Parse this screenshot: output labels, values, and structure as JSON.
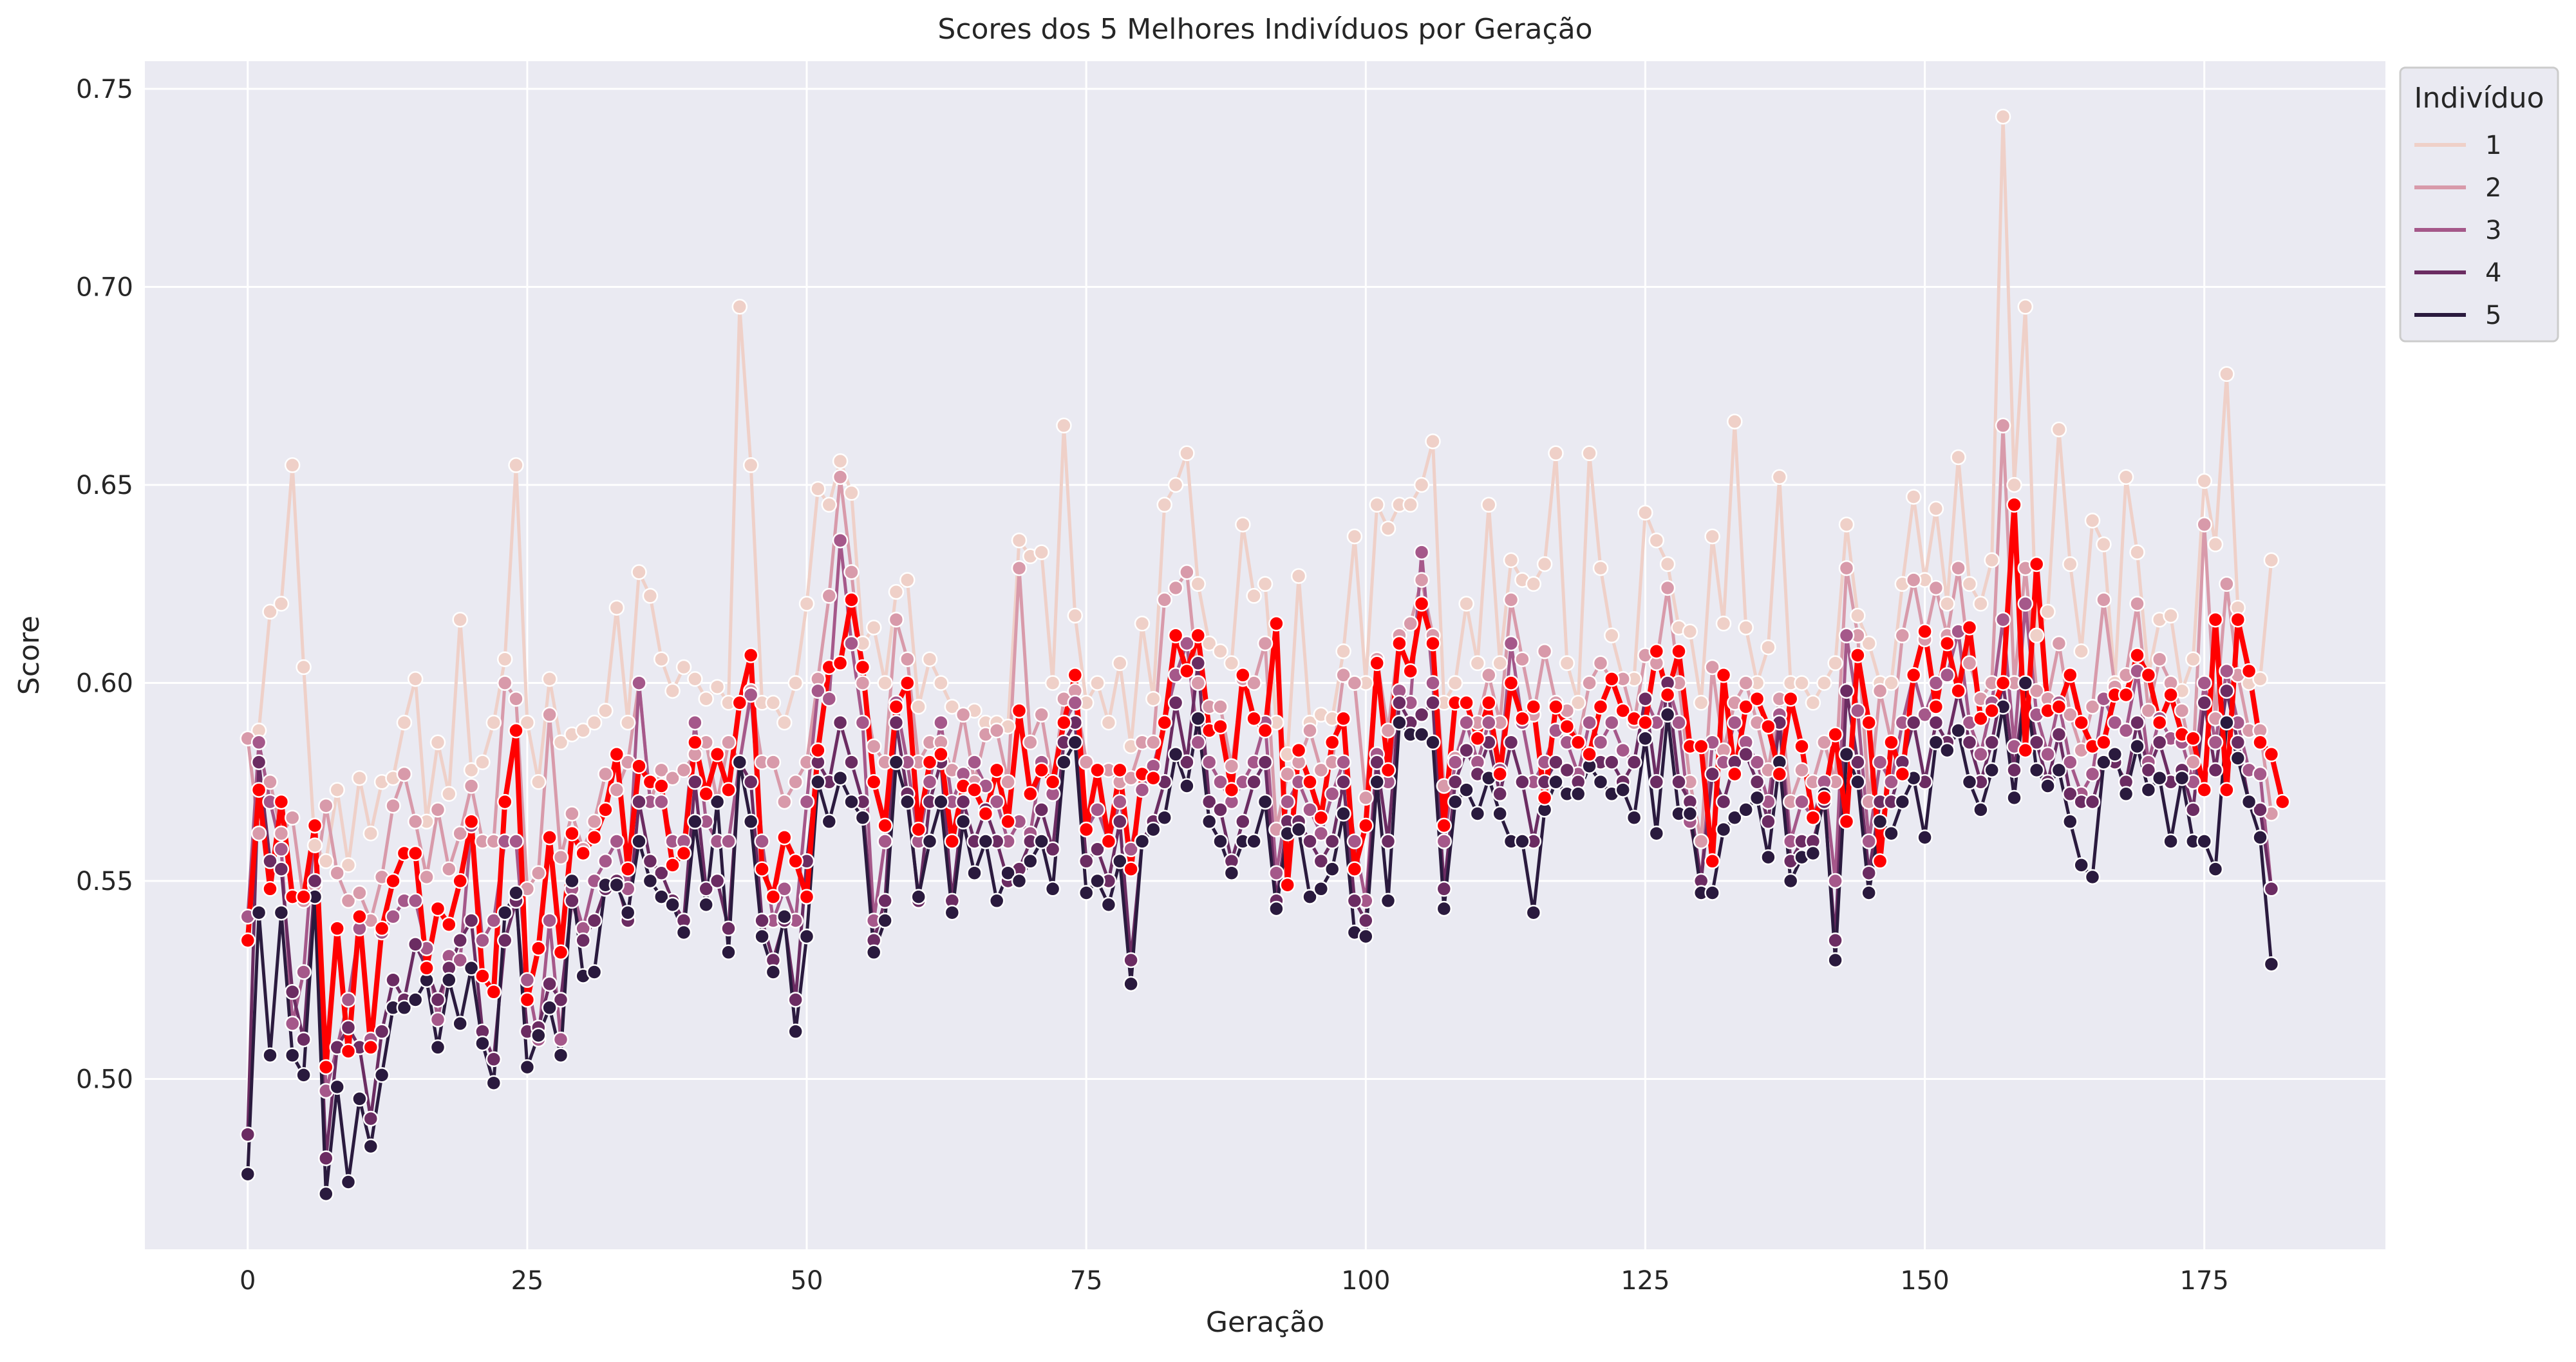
{
  "chart_data": {
    "type": "line",
    "title": "Scores dos 5 Melhores Indivíduos por Geração",
    "xlabel": "Geração",
    "ylabel": "Score",
    "xlim": [
      -9.2,
      191.2
    ],
    "ylim": [
      0.457,
      0.757
    ],
    "xticks": [
      0,
      25,
      50,
      75,
      100,
      125,
      150,
      175
    ],
    "yticks": [
      0.5,
      0.55,
      0.6,
      0.65,
      0.7,
      0.75
    ],
    "ytick_labels": [
      "0.50",
      "0.55",
      "0.60",
      "0.65",
      "0.70",
      "0.75"
    ],
    "grid": true,
    "legend": {
      "title": "Indivíduo",
      "position": "top-right, outside plot"
    },
    "generations": {
      "start": 0,
      "end": 182,
      "step": 1
    },
    "series": [
      {
        "name": "1",
        "color": "#efd0c8",
        "values": [
          0.586,
          0.588,
          0.618,
          0.62,
          0.655,
          0.604,
          0.559,
          0.555,
          0.573,
          0.554,
          0.576,
          0.562,
          0.575,
          0.576,
          0.59,
          0.601,
          0.565,
          0.585,
          0.572,
          0.616,
          0.578,
          0.58,
          0.59,
          0.606,
          0.655,
          0.59,
          0.575,
          0.601,
          0.585,
          0.587,
          0.588,
          0.59,
          0.593,
          0.619,
          0.59,
          0.628,
          0.622,
          0.606,
          0.598,
          0.604,
          0.601,
          0.596,
          0.599,
          0.595,
          0.695,
          0.655,
          0.595,
          0.595,
          0.59,
          0.6,
          0.62,
          0.649,
          0.645,
          0.656,
          0.648,
          0.61,
          0.614,
          0.6,
          0.623,
          0.626,
          0.594,
          0.606,
          0.6,
          0.594,
          0.592,
          0.593,
          0.59,
          0.59,
          0.589,
          0.636,
          0.632,
          0.633,
          0.6,
          0.665,
          0.617,
          0.595,
          0.6,
          0.59,
          0.605,
          0.584,
          0.615,
          0.596,
          0.645,
          0.65,
          0.658,
          0.625,
          0.61,
          0.608,
          0.605,
          0.64,
          0.622,
          0.625,
          0.59,
          0.582,
          0.627,
          0.59,
          0.592,
          0.591,
          0.608,
          0.637,
          0.6,
          0.645,
          0.639,
          0.645,
          0.645,
          0.65,
          0.661,
          0.595,
          0.6,
          0.62,
          0.605,
          0.645,
          0.605,
          0.631,
          0.626,
          0.625,
          0.63,
          0.658,
          0.605,
          0.595,
          0.658,
          0.629,
          0.612,
          0.601,
          0.601,
          0.643,
          0.636,
          0.63,
          0.614,
          0.613,
          0.595,
          0.637,
          0.615,
          0.666,
          0.614,
          0.6,
          0.609,
          0.652,
          0.6,
          0.6,
          0.595,
          0.6,
          0.605,
          0.64,
          0.617,
          0.61,
          0.6,
          0.6,
          0.625,
          0.647,
          0.626,
          0.644,
          0.62,
          0.657,
          0.625,
          0.62,
          0.631,
          0.743,
          0.65,
          0.695,
          0.612,
          0.618,
          0.664,
          0.63,
          0.608,
          0.641,
          0.635,
          0.6,
          0.652,
          0.633,
          0.602,
          0.616,
          0.617,
          0.598,
          0.606,
          0.651,
          0.635,
          0.678,
          0.619,
          0.6,
          0.601,
          0.631
        ]
      },
      {
        "name": "2",
        "color": "#d89aaa",
        "values": [
          0.586,
          0.562,
          0.575,
          0.562,
          0.566,
          0.545,
          0.549,
          0.569,
          0.552,
          0.545,
          0.547,
          0.54,
          0.551,
          0.569,
          0.577,
          0.565,
          0.551,
          0.568,
          0.553,
          0.562,
          0.574,
          0.56,
          0.56,
          0.6,
          0.596,
          0.548,
          0.552,
          0.592,
          0.556,
          0.567,
          0.558,
          0.565,
          0.577,
          0.573,
          0.58,
          0.6,
          0.57,
          0.578,
          0.576,
          0.578,
          0.582,
          0.585,
          0.57,
          0.585,
          0.58,
          0.598,
          0.58,
          0.58,
          0.57,
          0.575,
          0.58,
          0.601,
          0.622,
          0.652,
          0.628,
          0.6,
          0.584,
          0.58,
          0.616,
          0.606,
          0.58,
          0.585,
          0.585,
          0.578,
          0.592,
          0.575,
          0.587,
          0.588,
          0.575,
          0.629,
          0.585,
          0.592,
          0.575,
          0.596,
          0.598,
          0.58,
          0.578,
          0.578,
          0.575,
          0.576,
          0.585,
          0.585,
          0.621,
          0.624,
          0.628,
          0.6,
          0.594,
          0.594,
          0.579,
          0.601,
          0.6,
          0.61,
          0.563,
          0.577,
          0.58,
          0.588,
          0.578,
          0.58,
          0.602,
          0.6,
          0.571,
          0.606,
          0.588,
          0.612,
          0.615,
          0.626,
          0.612,
          0.574,
          0.581,
          0.59,
          0.59,
          0.602,
          0.59,
          0.621,
          0.606,
          0.592,
          0.608,
          0.595,
          0.593,
          0.585,
          0.6,
          0.605,
          0.601,
          0.601,
          0.59,
          0.607,
          0.605,
          0.624,
          0.6,
          0.575,
          0.56,
          0.604,
          0.583,
          0.595,
          0.6,
          0.59,
          0.578,
          0.596,
          0.57,
          0.578,
          0.575,
          0.585,
          0.575,
          0.629,
          0.612,
          0.57,
          0.598,
          0.585,
          0.612,
          0.626,
          0.611,
          0.624,
          0.612,
          0.629,
          0.605,
          0.596,
          0.6,
          0.665,
          0.6,
          0.629,
          0.598,
          0.596,
          0.61,
          0.592,
          0.583,
          0.594,
          0.621,
          0.599,
          0.602,
          0.62,
          0.593,
          0.606,
          0.6,
          0.593,
          0.58,
          0.64,
          0.591,
          0.625,
          0.602,
          0.588,
          0.588,
          0.567
        ]
      },
      {
        "name": "3",
        "color": "#a5588a",
        "values": [
          0.541,
          0.585,
          0.57,
          0.558,
          0.514,
          0.527,
          0.564,
          0.497,
          0.508,
          0.52,
          0.538,
          0.51,
          0.537,
          0.541,
          0.545,
          0.545,
          0.533,
          0.515,
          0.531,
          0.53,
          0.564,
          0.535,
          0.54,
          0.56,
          0.56,
          0.525,
          0.51,
          0.54,
          0.51,
          0.548,
          0.538,
          0.55,
          0.555,
          0.56,
          0.548,
          0.6,
          0.57,
          0.57,
          0.56,
          0.56,
          0.59,
          0.565,
          0.56,
          0.56,
          0.58,
          0.597,
          0.56,
          0.54,
          0.548,
          0.54,
          0.57,
          0.598,
          0.596,
          0.636,
          0.61,
          0.59,
          0.54,
          0.56,
          0.595,
          0.58,
          0.56,
          0.575,
          0.59,
          0.57,
          0.577,
          0.58,
          0.574,
          0.57,
          0.56,
          0.565,
          0.562,
          0.58,
          0.572,
          0.59,
          0.595,
          0.563,
          0.568,
          0.56,
          0.57,
          0.558,
          0.573,
          0.579,
          0.59,
          0.602,
          0.61,
          0.585,
          0.58,
          0.575,
          0.57,
          0.575,
          0.58,
          0.59,
          0.552,
          0.57,
          0.575,
          0.568,
          0.562,
          0.572,
          0.58,
          0.56,
          0.545,
          0.582,
          0.575,
          0.598,
          0.595,
          0.633,
          0.6,
          0.56,
          0.58,
          0.59,
          0.58,
          0.59,
          0.578,
          0.61,
          0.59,
          0.575,
          0.58,
          0.588,
          0.585,
          0.577,
          0.59,
          0.585,
          0.59,
          0.583,
          0.58,
          0.596,
          0.59,
          0.6,
          0.59,
          0.565,
          0.55,
          0.585,
          0.58,
          0.59,
          0.585,
          0.58,
          0.57,
          0.592,
          0.56,
          0.57,
          0.566,
          0.575,
          0.55,
          0.612,
          0.593,
          0.56,
          0.58,
          0.575,
          0.59,
          0.602,
          0.592,
          0.6,
          0.602,
          0.613,
          0.59,
          0.582,
          0.595,
          0.616,
          0.584,
          0.62,
          0.592,
          0.582,
          0.595,
          0.58,
          0.572,
          0.577,
          0.596,
          0.59,
          0.588,
          0.603,
          0.58,
          0.591,
          0.586,
          0.585,
          0.575,
          0.6,
          0.585,
          0.603,
          0.59,
          0.578,
          0.577,
          0.548
        ]
      },
      {
        "name": "4",
        "color": "#6b2c62",
        "values": [
          0.486,
          0.58,
          0.555,
          0.553,
          0.522,
          0.51,
          0.55,
          0.48,
          0.508,
          0.513,
          0.508,
          0.49,
          0.512,
          0.525,
          0.52,
          0.534,
          0.528,
          0.52,
          0.528,
          0.535,
          0.54,
          0.512,
          0.505,
          0.535,
          0.545,
          0.512,
          0.513,
          0.524,
          0.52,
          0.545,
          0.535,
          0.54,
          0.548,
          0.55,
          0.54,
          0.57,
          0.555,
          0.552,
          0.545,
          0.54,
          0.575,
          0.548,
          0.55,
          0.538,
          0.58,
          0.575,
          0.54,
          0.53,
          0.54,
          0.52,
          0.555,
          0.58,
          0.575,
          0.59,
          0.58,
          0.57,
          0.535,
          0.545,
          0.59,
          0.572,
          0.545,
          0.57,
          0.58,
          0.545,
          0.57,
          0.56,
          0.568,
          0.56,
          0.55,
          0.553,
          0.56,
          0.568,
          0.558,
          0.585,
          0.59,
          0.555,
          0.558,
          0.55,
          0.565,
          0.53,
          0.56,
          0.565,
          0.575,
          0.595,
          0.58,
          0.605,
          0.57,
          0.568,
          0.555,
          0.565,
          0.575,
          0.58,
          0.545,
          0.565,
          0.565,
          0.56,
          0.555,
          0.56,
          0.575,
          0.545,
          0.54,
          0.58,
          0.56,
          0.595,
          0.59,
          0.592,
          0.595,
          0.548,
          0.575,
          0.583,
          0.577,
          0.585,
          0.572,
          0.585,
          0.575,
          0.56,
          0.575,
          0.58,
          0.578,
          0.575,
          0.582,
          0.58,
          0.58,
          0.575,
          0.58,
          0.596,
          0.575,
          0.6,
          0.575,
          0.57,
          0.55,
          0.577,
          0.57,
          0.58,
          0.582,
          0.575,
          0.565,
          0.59,
          0.555,
          0.56,
          0.56,
          0.57,
          0.535,
          0.598,
          0.58,
          0.552,
          0.57,
          0.57,
          0.58,
          0.59,
          0.575,
          0.59,
          0.585,
          0.598,
          0.585,
          0.575,
          0.585,
          0.6,
          0.578,
          0.6,
          0.585,
          0.575,
          0.587,
          0.572,
          0.57,
          0.57,
          0.58,
          0.58,
          0.575,
          0.59,
          0.578,
          0.585,
          0.575,
          0.578,
          0.568,
          0.595,
          0.578,
          0.598,
          0.585,
          0.57,
          0.568,
          0.548
        ]
      },
      {
        "name": "5",
        "color": "#2a1a3e",
        "values": [
          0.476,
          0.542,
          0.506,
          0.542,
          0.506,
          0.501,
          0.546,
          0.471,
          0.498,
          0.474,
          0.495,
          0.483,
          0.501,
          0.518,
          0.518,
          0.52,
          0.525,
          0.508,
          0.525,
          0.514,
          0.528,
          0.509,
          0.499,
          0.542,
          0.547,
          0.503,
          0.511,
          0.518,
          0.506,
          0.55,
          0.526,
          0.527,
          0.549,
          0.549,
          0.542,
          0.56,
          0.55,
          0.546,
          0.544,
          0.537,
          0.565,
          0.544,
          0.57,
          0.532,
          0.58,
          0.565,
          0.536,
          0.527,
          0.541,
          0.512,
          0.536,
          0.575,
          0.565,
          0.576,
          0.57,
          0.566,
          0.532,
          0.54,
          0.58,
          0.57,
          0.546,
          0.56,
          0.57,
          0.542,
          0.565,
          0.552,
          0.56,
          0.545,
          0.552,
          0.55,
          0.555,
          0.56,
          0.548,
          0.58,
          0.585,
          0.547,
          0.55,
          0.544,
          0.555,
          0.524,
          0.56,
          0.563,
          0.566,
          0.582,
          0.574,
          0.591,
          0.565,
          0.56,
          0.552,
          0.56,
          0.56,
          0.57,
          0.543,
          0.562,
          0.563,
          0.546,
          0.548,
          0.553,
          0.567,
          0.537,
          0.536,
          0.575,
          0.545,
          0.59,
          0.587,
          0.587,
          0.585,
          0.543,
          0.57,
          0.573,
          0.567,
          0.576,
          0.567,
          0.56,
          0.56,
          0.542,
          0.568,
          0.575,
          0.572,
          0.572,
          0.579,
          0.575,
          0.572,
          0.573,
          0.566,
          0.586,
          0.562,
          0.592,
          0.567,
          0.567,
          0.547,
          0.547,
          0.563,
          0.566,
          0.568,
          0.571,
          0.556,
          0.58,
          0.55,
          0.556,
          0.557,
          0.572,
          0.53,
          0.582,
          0.575,
          0.547,
          0.565,
          0.562,
          0.57,
          0.576,
          0.561,
          0.585,
          0.583,
          0.588,
          0.575,
          0.568,
          0.578,
          0.594,
          0.571,
          0.6,
          0.578,
          0.574,
          0.578,
          0.565,
          0.554,
          0.551,
          0.58,
          0.582,
          0.572,
          0.584,
          0.573,
          0.576,
          0.56,
          0.576,
          0.56,
          0.56,
          0.553,
          0.59,
          0.581,
          0.57,
          0.561,
          0.529
        ]
      }
    ],
    "highlight_series": {
      "color": "#ff0000",
      "values": [
        0.535,
        0.573,
        0.548,
        0.57,
        0.546,
        0.546,
        0.564,
        0.503,
        0.538,
        0.507,
        0.541,
        0.508,
        0.538,
        0.55,
        0.557,
        0.557,
        0.528,
        0.543,
        0.539,
        0.55,
        0.565,
        0.526,
        0.522,
        0.57,
        0.588,
        0.52,
        0.533,
        0.561,
        0.532,
        0.562,
        0.557,
        0.561,
        0.568,
        0.582,
        0.553,
        0.579,
        0.575,
        0.574,
        0.554,
        0.557,
        0.585,
        0.572,
        0.582,
        0.573,
        0.595,
        0.607,
        0.553,
        0.546,
        0.561,
        0.555,
        0.546,
        0.583,
        0.604,
        0.605,
        0.621,
        0.604,
        0.575,
        0.564,
        0.594,
        0.6,
        0.563,
        0.58,
        0.582,
        0.56,
        0.574,
        0.573,
        0.567,
        0.578,
        0.565,
        0.593,
        0.572,
        0.578,
        0.575,
        0.59,
        0.602,
        0.563,
        0.578,
        0.56,
        0.578,
        0.553,
        0.577,
        0.576,
        0.59,
        0.612,
        0.603,
        0.612,
        0.588,
        0.589,
        0.573,
        0.602,
        0.591,
        0.588,
        0.615,
        0.549,
        0.583,
        0.575,
        0.566,
        0.585,
        0.591,
        0.553,
        0.564,
        0.605,
        0.578,
        0.61,
        0.603,
        0.62,
        0.61,
        0.564,
        0.595,
        0.595,
        0.586,
        0.595,
        0.577,
        0.6,
        0.591,
        0.594,
        0.571,
        0.594,
        0.589,
        0.585,
        0.582,
        0.594,
        0.601,
        0.593,
        0.591,
        0.59,
        0.608,
        0.597,
        0.608,
        0.584,
        0.584,
        0.555,
        0.602,
        0.577,
        0.594,
        0.596,
        0.589,
        0.577,
        0.596,
        0.584,
        0.566,
        0.571,
        0.587,
        0.565,
        0.607,
        0.59,
        0.555,
        0.585,
        0.577,
        0.602,
        0.613,
        0.594,
        0.61,
        0.598,
        0.614,
        0.591,
        0.593,
        0.6,
        0.645,
        0.583,
        0.63,
        0.593,
        0.594,
        0.602,
        0.59,
        0.584,
        0.585,
        0.597,
        0.597,
        0.607,
        0.602,
        0.59,
        0.597,
        0.587,
        0.586,
        0.573,
        0.616,
        0.573,
        0.616,
        0.603,
        0.585,
        0.582,
        0.57
      ]
    }
  }
}
